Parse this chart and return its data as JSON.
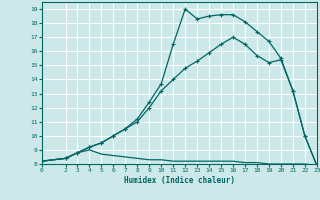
{
  "xlabel": "Humidex (Indice chaleur)",
  "bg_color": "#cce8e8",
  "grid_color": "#ffffff",
  "line_color": "#006666",
  "xlim": [
    0,
    23
  ],
  "ylim": [
    8,
    19.5
  ],
  "xticks": [
    0,
    2,
    3,
    4,
    5,
    6,
    7,
    8,
    9,
    10,
    11,
    12,
    13,
    14,
    15,
    16,
    17,
    18,
    19,
    20,
    21,
    22,
    23
  ],
  "yticks": [
    8,
    9,
    10,
    11,
    12,
    13,
    14,
    15,
    16,
    17,
    18,
    19
  ],
  "curve1_x": [
    0,
    2,
    3,
    4,
    5,
    6,
    7,
    8,
    9,
    10,
    11,
    12,
    13,
    14,
    15,
    16,
    17,
    18,
    19,
    20,
    21,
    22,
    23
  ],
  "curve1_y": [
    8.2,
    8.4,
    8.8,
    9.2,
    9.5,
    10.0,
    10.5,
    11.0,
    12.0,
    13.2,
    14.0,
    14.8,
    15.3,
    15.9,
    16.5,
    17.0,
    16.5,
    15.7,
    15.2,
    15.4,
    13.2,
    10.0,
    7.9
  ],
  "curve2_x": [
    0,
    2,
    3,
    4,
    5,
    6,
    7,
    8,
    9,
    10,
    11,
    12,
    13,
    14,
    15,
    16,
    17,
    18,
    19,
    20,
    21,
    22,
    23
  ],
  "curve2_y": [
    8.2,
    8.4,
    8.8,
    9.2,
    9.5,
    10.0,
    10.5,
    11.2,
    12.4,
    13.7,
    16.5,
    19.0,
    18.3,
    18.5,
    18.6,
    18.6,
    18.1,
    17.4,
    16.7,
    15.5,
    13.2,
    10.0,
    7.9
  ],
  "curve3_x": [
    0,
    2,
    3,
    4,
    5,
    6,
    7,
    8,
    9,
    10,
    11,
    12,
    13,
    14,
    15,
    16,
    17,
    18,
    19,
    20,
    21,
    22,
    23
  ],
  "curve3_y": [
    8.2,
    8.4,
    8.8,
    9.0,
    8.7,
    8.6,
    8.5,
    8.4,
    8.3,
    8.3,
    8.2,
    8.2,
    8.2,
    8.2,
    8.2,
    8.2,
    8.1,
    8.1,
    8.0,
    8.0,
    8.0,
    8.0,
    7.9
  ]
}
